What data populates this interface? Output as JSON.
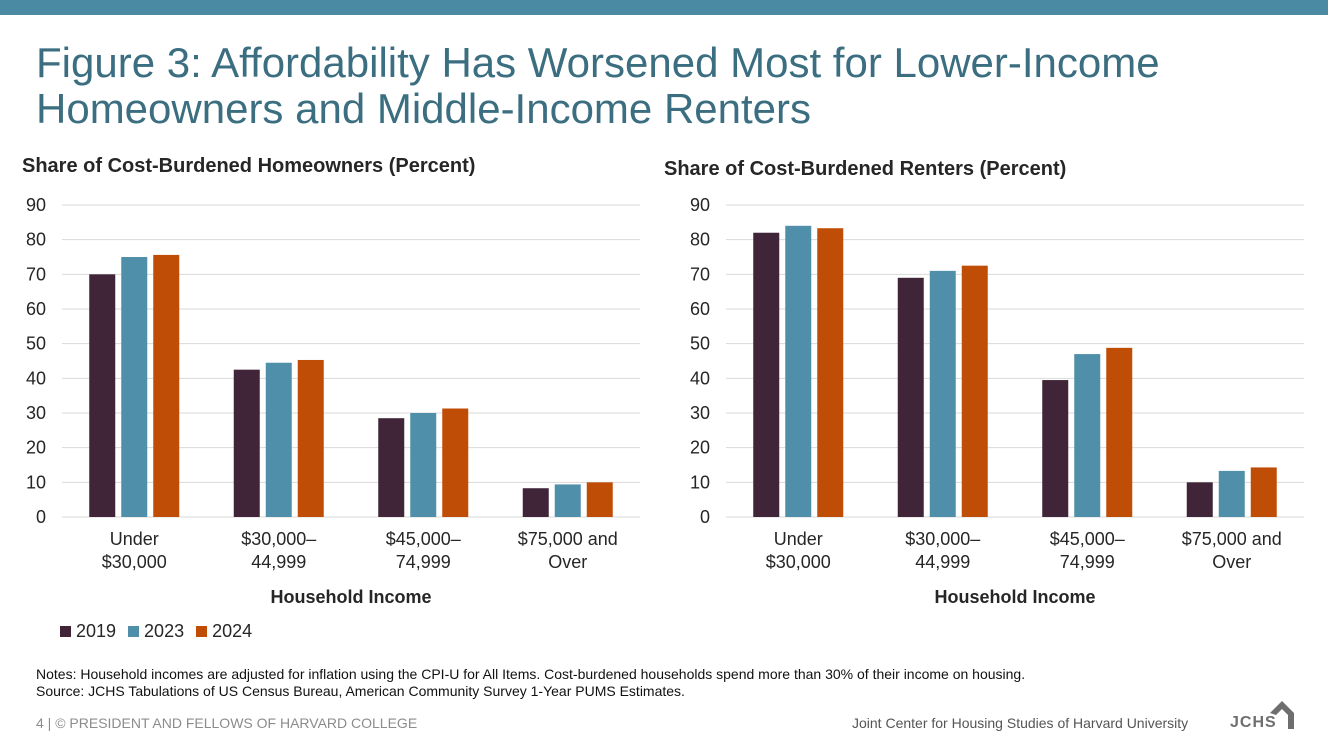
{
  "page": {
    "title_line1": "Figure 3: Affordability Has Worsened Most for Lower-Income",
    "title_line2": "Homeowners and Middle-Income Renters",
    "notes_line1": "Notes: Household incomes are adjusted for inflation using the CPI-U for All Items. Cost-burdened households spend more than 30% of their income on housing.",
    "notes_line2": "Source: JCHS Tabulations of US Census Bureau, American Community Survey 1-Year PUMS Estimates.",
    "footer_left": "4 | © PRESIDENT AND FELLOWS OF HARVARD COLLEGE",
    "footer_right": "Joint Center for Housing Studies of Harvard University",
    "logo_text": "JCHS"
  },
  "colors": {
    "topbar": "#4a8aa3",
    "title": "#3b6e80",
    "series": [
      "#3f2537",
      "#4f8fa9",
      "#c04d06"
    ],
    "grid": "#d9d9d9"
  },
  "legend": [
    "2019",
    "2023",
    "2024"
  ],
  "chart_data": [
    {
      "type": "bar",
      "title": "Share of Cost-Burdened Homeowners (Percent)",
      "xlabel": "Household Income",
      "ylabel": "",
      "ylim": [
        0,
        90
      ],
      "yticks": [
        0,
        10,
        20,
        30,
        40,
        50,
        60,
        70,
        80,
        90
      ],
      "grid": true,
      "categories": [
        [
          "Under",
          "$30,000"
        ],
        [
          "$30,000–",
          "44,999"
        ],
        [
          "$45,000–",
          "74,999"
        ],
        [
          "$75,000 and",
          "Over"
        ]
      ],
      "series": [
        {
          "name": "2019",
          "values": [
            70,
            42.5,
            28.5,
            8.3
          ]
        },
        {
          "name": "2023",
          "values": [
            75,
            44.5,
            30,
            9.4
          ]
        },
        {
          "name": "2024",
          "values": [
            75.6,
            45.3,
            31.3,
            10
          ]
        }
      ]
    },
    {
      "type": "bar",
      "title": "Share of Cost-Burdened Renters (Percent)",
      "xlabel": "Household Income",
      "ylabel": "",
      "ylim": [
        0,
        90
      ],
      "yticks": [
        0,
        10,
        20,
        30,
        40,
        50,
        60,
        70,
        80,
        90
      ],
      "grid": true,
      "categories": [
        [
          "Under",
          "$30,000"
        ],
        [
          "$30,000–",
          "44,999"
        ],
        [
          "$45,000–",
          "74,999"
        ],
        [
          "$75,000 and",
          "Over"
        ]
      ],
      "series": [
        {
          "name": "2019",
          "values": [
            82,
            69,
            39.5,
            10
          ]
        },
        {
          "name": "2023",
          "values": [
            84,
            71,
            47,
            13.3
          ]
        },
        {
          "name": "2024",
          "values": [
            83.3,
            72.5,
            48.8,
            14.3
          ]
        }
      ]
    }
  ]
}
